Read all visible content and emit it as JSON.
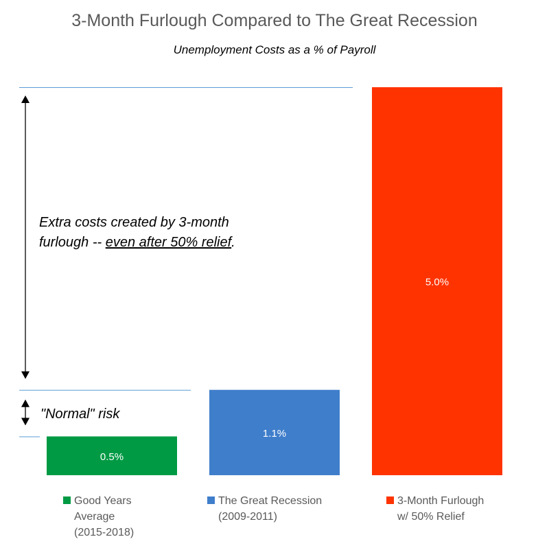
{
  "title": "3-Month Furlough Compared to The Great Recession",
  "subtitle": "Unemployment Costs as a % of Payroll",
  "annotations": {
    "extra_costs_line1": "Extra costs created by 3-month",
    "extra_costs_prefix": "furlough -- ",
    "extra_costs_emphasis": "even after 50% relief",
    "extra_costs_suffix": ".",
    "normal_risk": "\"Normal\" risk"
  },
  "colors": {
    "green": "#009a44",
    "blue": "#3f7ecb",
    "red": "#ff3300",
    "reference_line": "#5b9bd5",
    "arrow": "#000000"
  },
  "chart_data": {
    "type": "bar",
    "categories": [
      "Good Years Average (2015-2018)",
      "The Great Recession (2009-2011)",
      "3-Month Furlough w/ 50% Relief"
    ],
    "legend_lines": [
      [
        "Good Years",
        "Average",
        "(2015-2018)"
      ],
      [
        "The Great Recession",
        "(2009-2011)"
      ],
      [
        "3-Month Furlough",
        "w/ 50% Relief"
      ]
    ],
    "values": [
      0.5,
      1.1,
      5.0
    ],
    "data_labels": [
      "0.5%",
      "1.1%",
      "5.0%"
    ],
    "colors": [
      "#009a44",
      "#3f7ecb",
      "#ff3300"
    ],
    "ylim": [
      0,
      5.0
    ],
    "grid": false,
    "legend_position": "bottom",
    "xlabel": "",
    "ylabel": ""
  }
}
